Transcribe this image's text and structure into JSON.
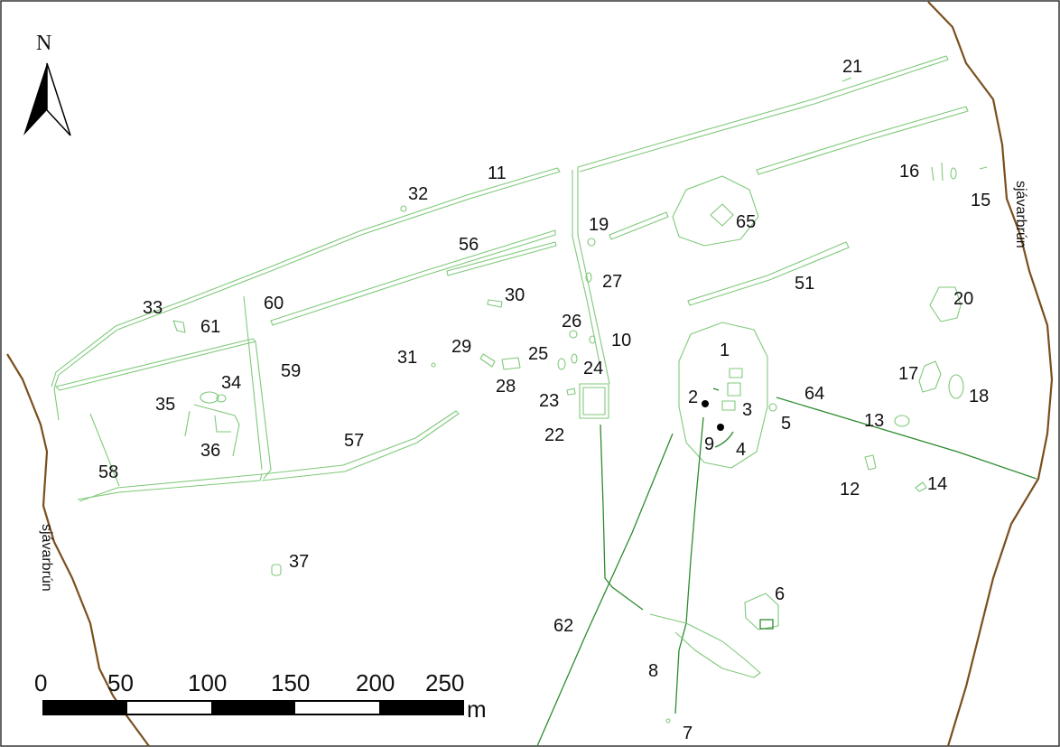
{
  "north_arrow": {
    "label": "N",
    "icon": "north-arrow-icon"
  },
  "coast_labels": {
    "west": "sjávarbrún",
    "east": "sjávarbrún"
  },
  "feature_labels": {
    "f1": "1",
    "f2": "2",
    "f3": "3",
    "f4": "4",
    "f5": "5",
    "f6": "6",
    "f7": "7",
    "f8": "8",
    "f9": "9",
    "f10": "10",
    "f11": "11",
    "f12": "12",
    "f13": "13",
    "f14": "14",
    "f15": "15",
    "f16": "16",
    "f17": "17",
    "f18": "18",
    "f19": "19",
    "f20": "20",
    "f21": "21",
    "f22": "22",
    "f23": "23",
    "f24": "24",
    "f25": "25",
    "f26": "26",
    "f27": "27",
    "f28": "28",
    "f29": "29",
    "f30": "30",
    "f31": "31",
    "f32": "32",
    "f33": "33",
    "f34": "34",
    "f35": "35",
    "f36": "36",
    "f37": "37",
    "f51": "51",
    "f56": "56",
    "f57": "57",
    "f58": "58",
    "f59": "59",
    "f60": "60",
    "f61": "61",
    "f62": "62",
    "f64": "64",
    "f65": "65"
  },
  "scale_bar": {
    "ticks": [
      "0",
      "50",
      "100",
      "150",
      "200",
      "250"
    ],
    "unit": "m"
  },
  "colors": {
    "coastline": "#7a4f1e",
    "features": "#7fc97a",
    "features_dark": "#2e8b2e",
    "scale_dark": "#000000",
    "scale_light": "#ffffff"
  }
}
